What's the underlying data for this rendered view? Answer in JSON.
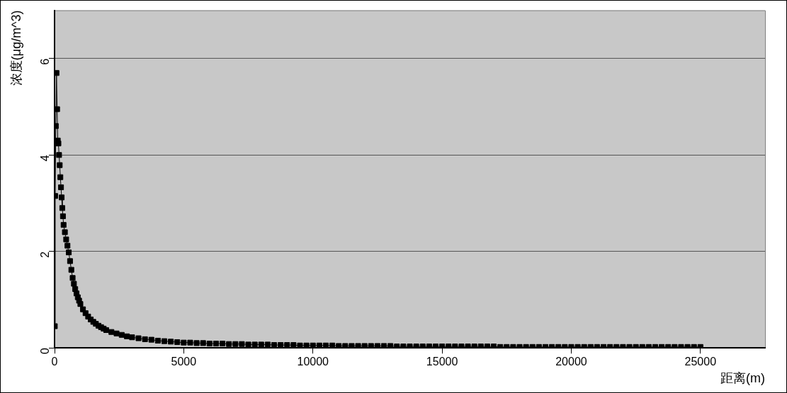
{
  "chart_data": {
    "type": "line",
    "xlabel": "距离(m)",
    "ylabel": "浓度(μg/m^3)",
    "xlim": [
      0,
      27500
    ],
    "xticks": [
      0,
      5000,
      10000,
      15000,
      20000,
      25000
    ],
    "ylim": [
      0,
      7
    ],
    "yticks": [
      0,
      2,
      4,
      6
    ],
    "grid": "y",
    "legend": false,
    "marker": "square",
    "line_style": "solid",
    "x": [
      10,
      25,
      50,
      75,
      100,
      125,
      150,
      175,
      200,
      225,
      250,
      275,
      300,
      325,
      350,
      400,
      450,
      500,
      550,
      600,
      650,
      700,
      750,
      800,
      850,
      900,
      950,
      1000,
      1100,
      1200,
      1300,
      1400,
      1500,
      1600,
      1700,
      1800,
      1900,
      2000,
      2200,
      2400,
      2600,
      2800,
      3000,
      3250,
      3500,
      3750,
      4000,
      4250,
      4500,
      4750,
      5000,
      5250,
      5500,
      5750,
      6000,
      6250,
      6500,
      6750,
      7000,
      7250,
      7500,
      7750,
      8000,
      8250,
      8500,
      8750,
      9000,
      9250,
      9500,
      9750,
      10000,
      10250,
      10500,
      10750,
      11000,
      11250,
      11500,
      11750,
      12000,
      12250,
      12500,
      12750,
      13000,
      13250,
      13500,
      13750,
      14000,
      14250,
      14500,
      14750,
      15000,
      15250,
      15500,
      15750,
      16000,
      16250,
      16500,
      16750,
      17000,
      17250,
      17500,
      17750,
      18000,
      18250,
      18500,
      18750,
      19000,
      19250,
      19500,
      19750,
      20000,
      20250,
      20500,
      20750,
      21000,
      21250,
      21500,
      21750,
      22000,
      22250,
      22500,
      22750,
      23000,
      23250,
      23500,
      23750,
      24000,
      24250,
      24500,
      24750,
      25000
    ],
    "series": [
      {
        "color": "#000000",
        "values": [
          0.45,
          3.15,
          4.6,
          5.7,
          4.95,
          4.3,
          4.24,
          4.0,
          3.79,
          3.54,
          3.33,
          3.12,
          2.9,
          2.73,
          2.55,
          2.4,
          2.25,
          2.12,
          1.98,
          1.8,
          1.62,
          1.45,
          1.33,
          1.22,
          1.13,
          1.05,
          0.98,
          0.91,
          0.8,
          0.72,
          0.65,
          0.59,
          0.54,
          0.5,
          0.46,
          0.43,
          0.4,
          0.37,
          0.33,
          0.3,
          0.27,
          0.24,
          0.22,
          0.2,
          0.18,
          0.17,
          0.15,
          0.14,
          0.13,
          0.12,
          0.11,
          0.11,
          0.1,
          0.1,
          0.09,
          0.09,
          0.09,
          0.08,
          0.08,
          0.08,
          0.07,
          0.07,
          0.07,
          0.07,
          0.06,
          0.06,
          0.06,
          0.06,
          0.05,
          0.05,
          0.05,
          0.05,
          0.05,
          0.05,
          0.04,
          0.04,
          0.04,
          0.04,
          0.04,
          0.04,
          0.04,
          0.04,
          0.04,
          0.03,
          0.03,
          0.03,
          0.03,
          0.03,
          0.03,
          0.03,
          0.03,
          0.03,
          0.03,
          0.03,
          0.03,
          0.03,
          0.03,
          0.03,
          0.03,
          0.02,
          0.02,
          0.02,
          0.02,
          0.02,
          0.02,
          0.02,
          0.02,
          0.02,
          0.02,
          0.02,
          0.02,
          0.02,
          0.02,
          0.02,
          0.02,
          0.02,
          0.02,
          0.02,
          0.02,
          0.02,
          0.02,
          0.02,
          0.02,
          0.02,
          0.02,
          0.02,
          0.02,
          0.02,
          0.02,
          0.02,
          0.02
        ]
      }
    ]
  }
}
